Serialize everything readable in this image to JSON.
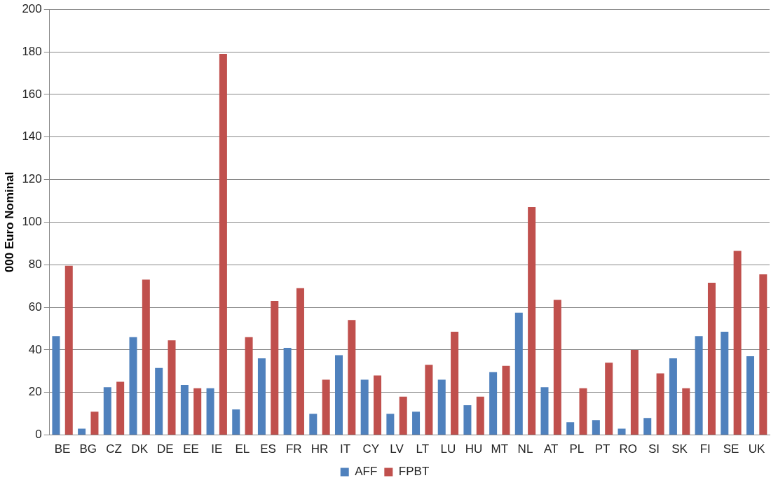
{
  "chart_data": {
    "type": "bar",
    "ylabel": "000 Euro Nominal",
    "categories": [
      "BE",
      "BG",
      "CZ",
      "DK",
      "DE",
      "EE",
      "IE",
      "EL",
      "ES",
      "FR",
      "HR",
      "IT",
      "CY",
      "LV",
      "LT",
      "LU",
      "HU",
      "MT",
      "NL",
      "AT",
      "PL",
      "PT",
      "RO",
      "SI",
      "SK",
      "FI",
      "SE",
      "UK"
    ],
    "series": [
      {
        "name": "AFF",
        "color": "#4f81bd",
        "values": [
          46.5,
          3,
          22.5,
          46,
          31.5,
          23.5,
          22,
          12,
          36,
          41,
          10,
          37.5,
          26,
          10,
          11,
          26,
          14,
          29.5,
          57.5,
          22.5,
          6,
          7,
          3,
          8,
          36,
          46.5,
          48.5,
          37
        ]
      },
      {
        "name": "FPBT",
        "color": "#c0504d",
        "values": [
          79.5,
          11,
          25,
          73,
          44.5,
          22,
          179,
          46,
          63,
          69,
          26,
          54,
          28,
          18,
          33,
          48.5,
          18,
          32.5,
          107,
          63.5,
          22,
          34,
          40,
          29,
          22,
          71.5,
          86.5,
          75.5
        ]
      }
    ],
    "ylim": [
      0,
      200
    ],
    "yticks": [
      0,
      20,
      40,
      60,
      80,
      100,
      120,
      140,
      160,
      180,
      200
    ],
    "grid": "y",
    "legend": "bottom"
  }
}
